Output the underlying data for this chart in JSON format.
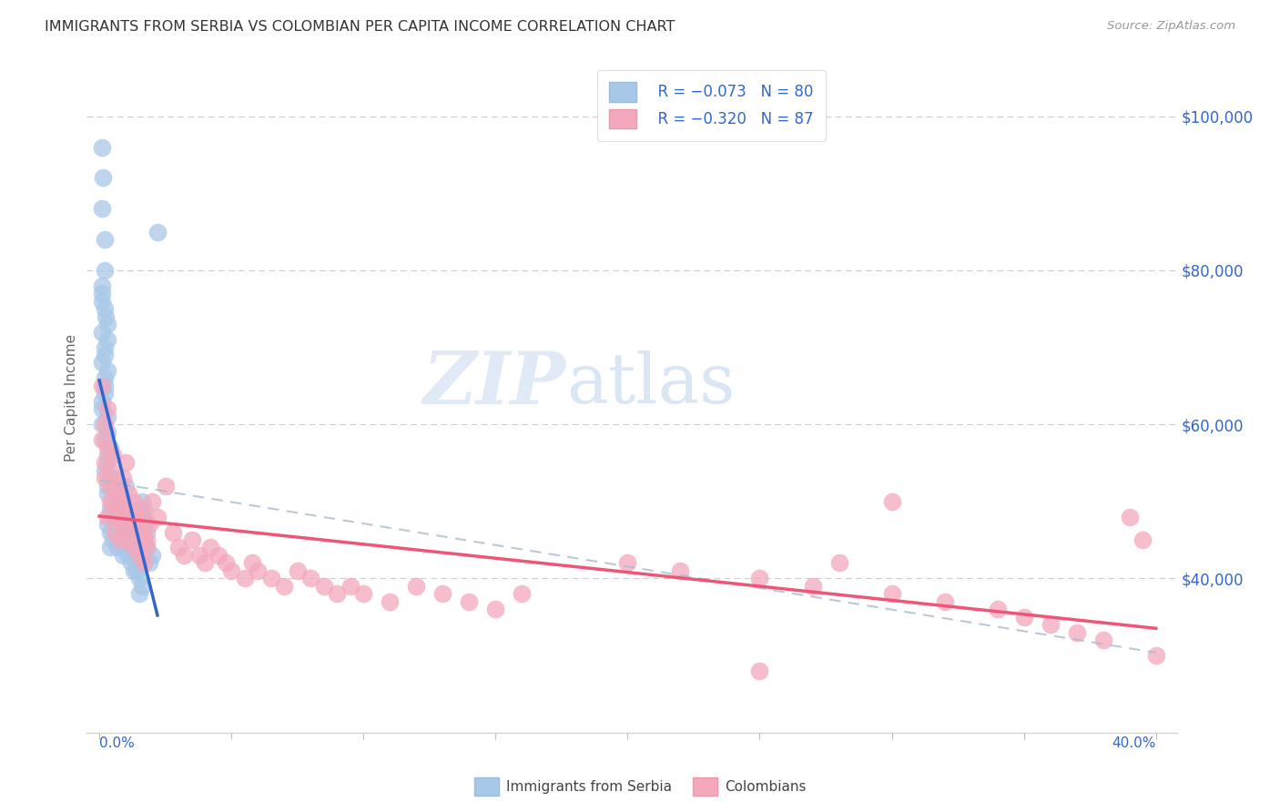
{
  "title": "IMMIGRANTS FROM SERBIA VS COLOMBIAN PER CAPITA INCOME CORRELATION CHART",
  "source": "Source: ZipAtlas.com",
  "ylabel": "Per Capita Income",
  "yticks": [
    40000,
    60000,
    80000,
    100000
  ],
  "ytick_labels": [
    "$40,000",
    "$60,000",
    "$80,000",
    "$100,000"
  ],
  "color_serbia": "#a8c8e8",
  "color_colombia": "#f4a8bc",
  "color_serbia_line": "#3366cc",
  "color_colombia_line": "#ee5577",
  "color_dashed": "#aabbcc",
  "watermark_zip": "ZIP",
  "watermark_atlas": "atlas",
  "serbia_x": [
    0.001,
    0.0015,
    0.001,
    0.002,
    0.001,
    0.0025,
    0.002,
    0.001,
    0.003,
    0.002,
    0.001,
    0.002,
    0.001,
    0.003,
    0.002,
    0.001,
    0.002,
    0.003,
    0.001,
    0.002,
    0.001,
    0.002,
    0.003,
    0.002,
    0.001,
    0.003,
    0.002,
    0.003,
    0.004,
    0.003,
    0.004,
    0.003,
    0.004,
    0.003,
    0.005,
    0.004,
    0.003,
    0.004,
    0.005,
    0.004,
    0.005,
    0.006,
    0.005,
    0.006,
    0.007,
    0.006,
    0.007,
    0.008,
    0.007,
    0.009,
    0.01,
    0.009,
    0.01,
    0.011,
    0.01,
    0.011,
    0.012,
    0.011,
    0.012,
    0.013,
    0.012,
    0.013,
    0.014,
    0.013,
    0.014,
    0.015,
    0.014,
    0.015,
    0.016,
    0.015,
    0.016,
    0.017,
    0.016,
    0.017,
    0.018,
    0.017,
    0.018,
    0.022,
    0.02,
    0.019
  ],
  "serbia_y": [
    96000,
    92000,
    88000,
    84000,
    78000,
    74000,
    80000,
    76000,
    73000,
    70000,
    68000,
    65000,
    72000,
    67000,
    64000,
    62000,
    75000,
    71000,
    77000,
    69000,
    63000,
    66000,
    61000,
    58000,
    60000,
    56000,
    54000,
    52000,
    57000,
    55000,
    53000,
    51000,
    49000,
    59000,
    50000,
    48000,
    47000,
    46000,
    45000,
    44000,
    53000,
    51000,
    49000,
    47000,
    50000,
    48000,
    46000,
    45000,
    44000,
    43000,
    52000,
    50000,
    48000,
    47000,
    46000,
    45000,
    44000,
    43000,
    42000,
    41000,
    47000,
    46000,
    45000,
    44000,
    43000,
    42000,
    41000,
    40000,
    39000,
    38000,
    50000,
    49000,
    48000,
    47000,
    46000,
    45000,
    44000,
    85000,
    43000,
    42000
  ],
  "colombia_x": [
    0.001,
    0.002,
    0.001,
    0.003,
    0.002,
    0.004,
    0.003,
    0.002,
    0.004,
    0.003,
    0.005,
    0.004,
    0.006,
    0.005,
    0.007,
    0.006,
    0.008,
    0.007,
    0.009,
    0.008,
    0.01,
    0.009,
    0.011,
    0.01,
    0.012,
    0.011,
    0.013,
    0.012,
    0.014,
    0.013,
    0.015,
    0.014,
    0.016,
    0.015,
    0.017,
    0.016,
    0.018,
    0.017,
    0.019,
    0.018,
    0.02,
    0.025,
    0.022,
    0.028,
    0.03,
    0.032,
    0.035,
    0.038,
    0.04,
    0.042,
    0.045,
    0.048,
    0.05,
    0.055,
    0.058,
    0.06,
    0.065,
    0.07,
    0.075,
    0.08,
    0.085,
    0.09,
    0.095,
    0.1,
    0.11,
    0.12,
    0.13,
    0.14,
    0.15,
    0.16,
    0.2,
    0.22,
    0.25,
    0.27,
    0.3,
    0.32,
    0.34,
    0.35,
    0.36,
    0.37,
    0.38,
    0.39,
    0.395,
    0.4,
    0.3,
    0.28,
    0.25
  ],
  "colombia_y": [
    65000,
    60000,
    58000,
    62000,
    55000,
    52000,
    57000,
    53000,
    50000,
    48000,
    56000,
    54000,
    52000,
    50000,
    48000,
    46000,
    51000,
    49000,
    47000,
    45000,
    55000,
    53000,
    51000,
    49000,
    47000,
    45000,
    50000,
    48000,
    46000,
    44000,
    49000,
    47000,
    45000,
    43000,
    48000,
    46000,
    44000,
    42000,
    47000,
    45000,
    50000,
    52000,
    48000,
    46000,
    44000,
    43000,
    45000,
    43000,
    42000,
    44000,
    43000,
    42000,
    41000,
    40000,
    42000,
    41000,
    40000,
    39000,
    41000,
    40000,
    39000,
    38000,
    39000,
    38000,
    37000,
    39000,
    38000,
    37000,
    36000,
    38000,
    42000,
    41000,
    40000,
    39000,
    38000,
    37000,
    36000,
    35000,
    34000,
    33000,
    32000,
    48000,
    45000,
    30000,
    50000,
    42000,
    28000
  ]
}
